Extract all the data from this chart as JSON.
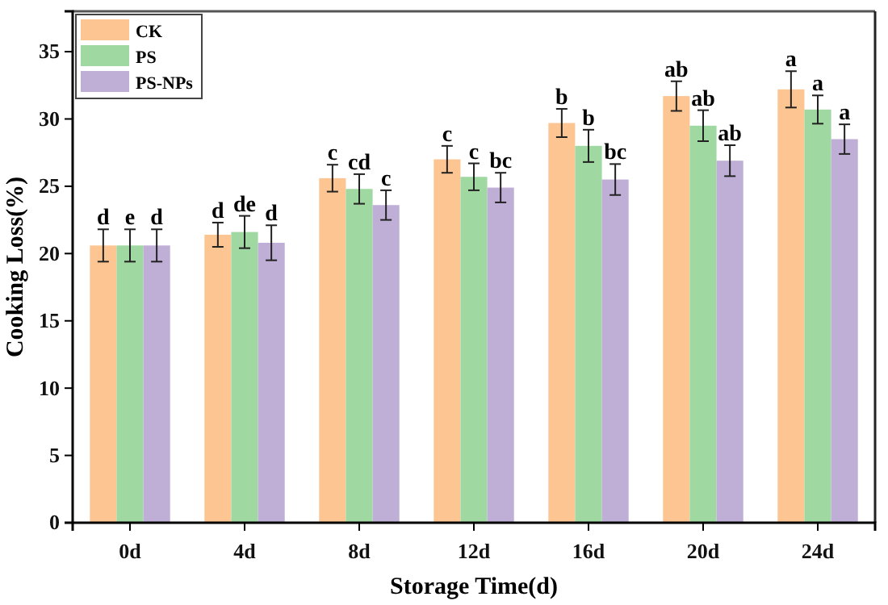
{
  "chart_data": {
    "type": "bar",
    "xlabel": "Storage Time(d)",
    "ylabel": "Cooking Loss(%)",
    "categories": [
      "0d",
      "4d",
      "8d",
      "12d",
      "16d",
      "20d",
      "24d"
    ],
    "series": [
      {
        "name": "CK",
        "color": "#fcc592",
        "values": [
          20.6,
          21.4,
          25.6,
          27.0,
          29.7,
          31.7,
          32.2
        ],
        "errors": [
          1.2,
          0.9,
          1.0,
          1.0,
          1.05,
          1.1,
          1.35
        ],
        "value_labels": [
          "d",
          "d",
          "c",
          "c",
          "b",
          "ab",
          "a"
        ]
      },
      {
        "name": "PS",
        "color": "#9fd8a0",
        "values": [
          20.6,
          21.6,
          24.8,
          25.7,
          28.0,
          29.5,
          30.7
        ],
        "errors": [
          1.2,
          1.2,
          1.1,
          1.0,
          1.2,
          1.15,
          1.05
        ],
        "value_labels": [
          "e",
          "de",
          "cd",
          "c",
          "b",
          "ab",
          "a"
        ]
      },
      {
        "name": "PS-NPs",
        "color": "#bfaed6",
        "values": [
          20.6,
          20.8,
          23.6,
          24.9,
          25.5,
          26.9,
          28.5
        ],
        "errors": [
          1.2,
          1.3,
          1.1,
          1.1,
          1.15,
          1.15,
          1.1
        ],
        "value_labels": [
          "d",
          "d",
          "c",
          "bc",
          "bc",
          "ab",
          "a"
        ]
      }
    ],
    "ylim": [
      0,
      38
    ],
    "yticks": [
      0,
      5,
      10,
      15,
      20,
      25,
      30,
      35
    ],
    "grid": false,
    "legend": "top left"
  }
}
